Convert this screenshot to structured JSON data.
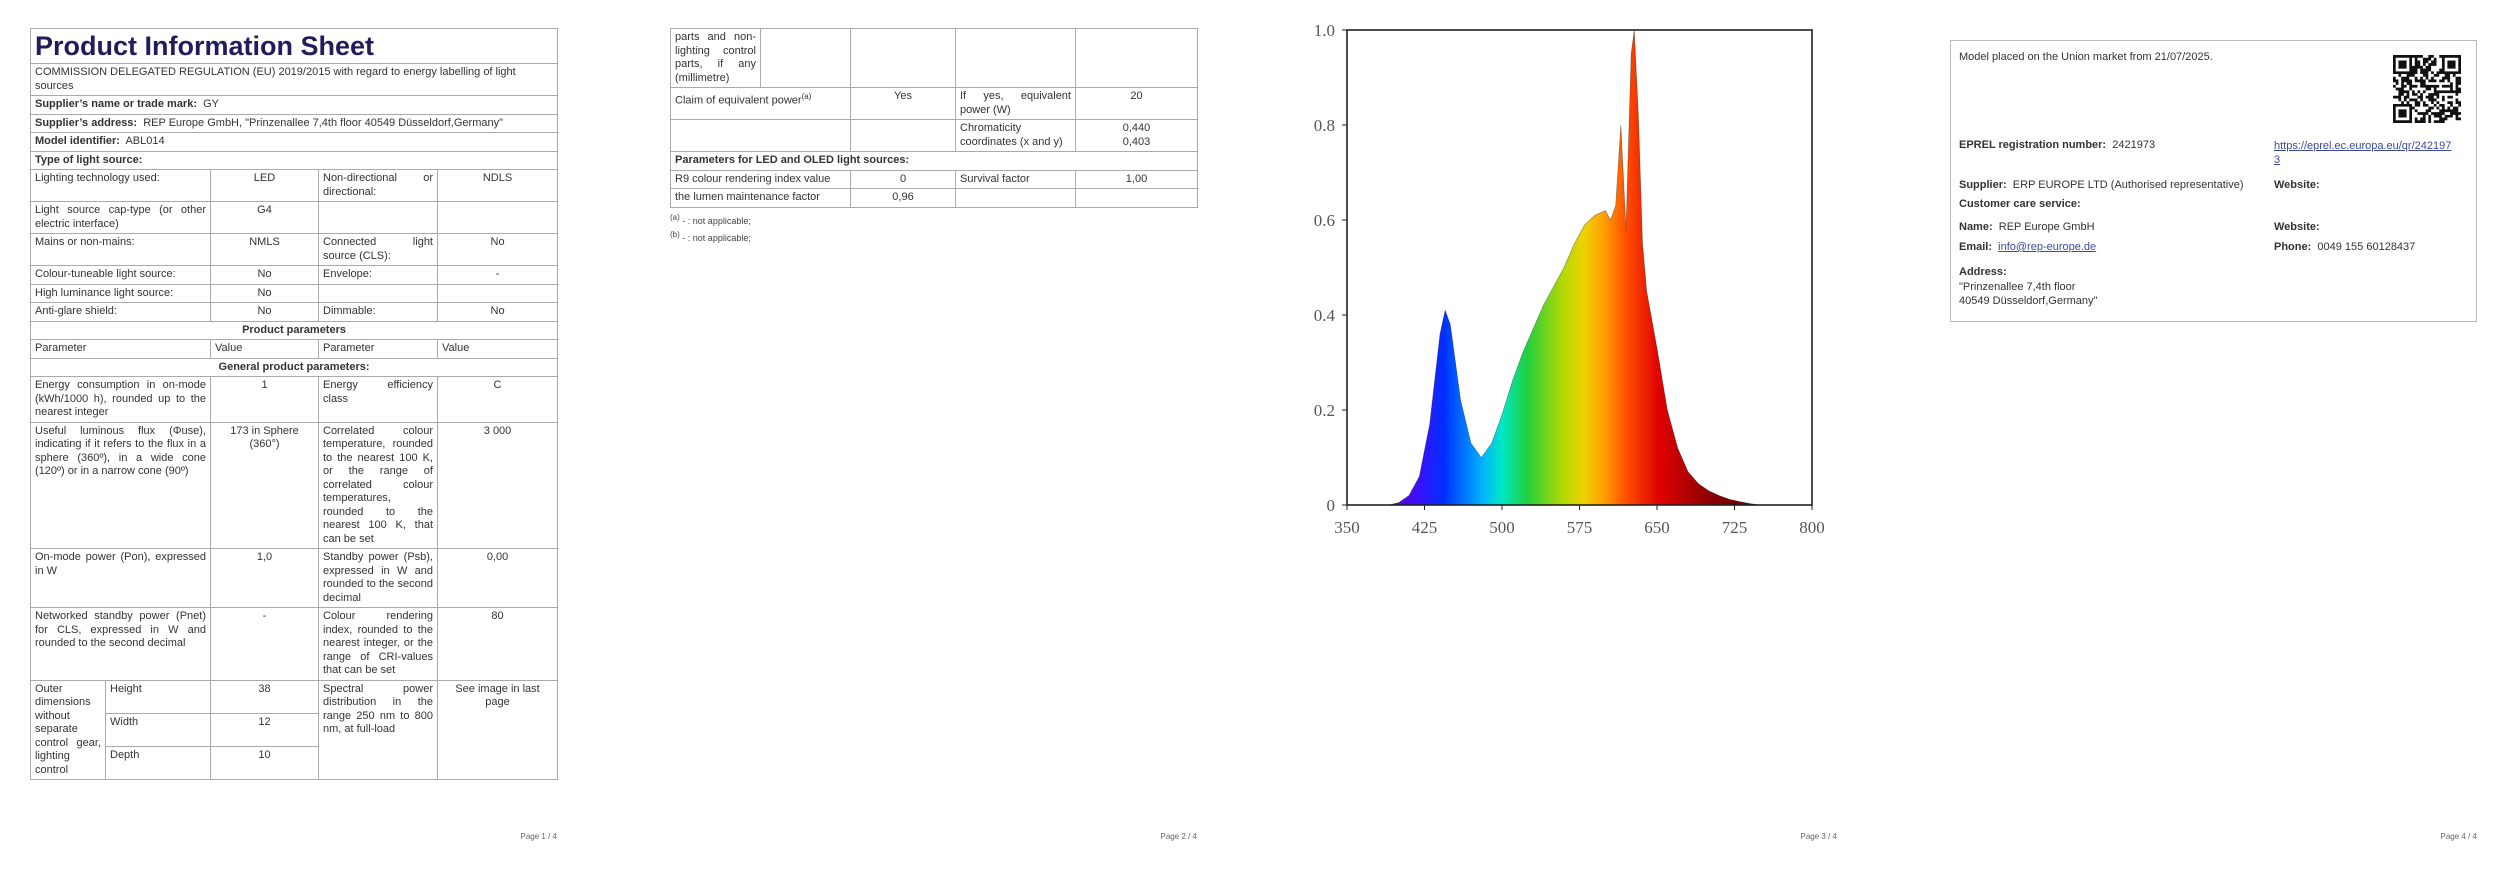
{
  "page1": {
    "title": "Product Information Sheet",
    "regulation": "COMMISSION DELEGATED REGULATION (EU) 2019/2015 with regard to energy labelling of light sources",
    "supplier_name": {
      "label": "Supplier’s name or trade mark:",
      "value": "GY"
    },
    "supplier_address": {
      "label": "Supplier’s address:",
      "value": "REP Europe GmbH, \"Prinzenallee 7,4th floor 40549 Düsseldorf,Germany\""
    },
    "model_identifier": {
      "label": "Model identifier:",
      "value": "ABL014"
    },
    "type_heading": "Type of light source:",
    "type_rows": [
      [
        "Lighting technology used:",
        "LED",
        "Non-directional or directional:",
        "NDLS"
      ],
      [
        "Light source cap-type (or other electric interface)",
        "G4"
      ],
      [
        "Mains or non-mains:",
        "NMLS",
        "Connected light source (CLS):",
        "No"
      ],
      [
        "Colour-tuneable light source:",
        "No",
        "Envelope:",
        "-"
      ],
      [
        "High luminance light source:",
        "No"
      ],
      [
        "Anti-glare shield:",
        "No",
        "Dimmable:",
        "No"
      ]
    ],
    "product_parameters": "Product parameters",
    "columns": [
      "Parameter",
      "Value",
      "Parameter",
      "Value"
    ],
    "general_heading": "General product parameters:",
    "param_rows": [
      [
        "Energy consumption in on-mode (kWh/1000 h), rounded up to the nearest integer",
        "1",
        "Energy efficiency class",
        "C"
      ],
      [
        "Useful luminous flux (Φuse), indicating if it refers to the flux in a sphere (360º), in a wide cone (120º) or in a narrow cone (90º)",
        "173 in Sphere (360°)",
        "Correlated colour temperature, rounded to the nearest 100 K, or the range of correlated colour temperatures, rounded to the nearest 100 K, that can be set",
        "3 000"
      ],
      [
        "On-mode power (Pon), expressed in W",
        "1,0",
        "Standby power (Psb), expressed in W and rounded to the second decimal",
        "0,00"
      ],
      [
        "Networked standby power (Pnet) for CLS, expressed in W and rounded to the second decimal",
        "-",
        "Colour rendering index, rounded to the nearest integer, or the range of CRI-values that can be set",
        "80"
      ]
    ],
    "dimensions": {
      "label": "Outer dimensions without separate control gear, lighting control",
      "rows": [
        [
          "Height",
          "38"
        ],
        [
          "Width",
          "12"
        ],
        [
          "Depth",
          "10"
        ]
      ],
      "param": "Spectral power distribution in the range 250 nm to 800 nm, at full-load",
      "value": "See image in last page"
    },
    "footer": "Page 1 / 4"
  },
  "page2": {
    "continuation": "parts and non-lighting control parts, if any (millimetre)",
    "claim": {
      "label": "Claim of equivalent power",
      "note": "(a)",
      "value": "Yes",
      "param": "If yes, equivalent power (W)",
      "param_value": "20"
    },
    "chromaticity": {
      "label": "Chromaticity coordinates (x and y)",
      "values": [
        "0,440",
        "0,403"
      ]
    },
    "led_heading": "Parameters for LED and OLED light sources:",
    "led_rows": [
      [
        "R9 colour rendering index value",
        "0",
        "Survival factor",
        "1,00"
      ],
      [
        "the lumen maintenance factor",
        "0,96"
      ]
    ],
    "footnotes": [
      {
        "mark": "(a)",
        "text": "- : not applicable;"
      },
      {
        "mark": "(b)",
        "text": "- : not applicable;"
      }
    ],
    "footer": "Page 2 / 4"
  },
  "chart_data": {
    "type": "area",
    "x": [
      350,
      360,
      370,
      380,
      390,
      400,
      410,
      420,
      430,
      440,
      445,
      450,
      455,
      460,
      470,
      480,
      490,
      500,
      510,
      520,
      530,
      540,
      550,
      560,
      570,
      580,
      590,
      600,
      605,
      610,
      615,
      620,
      625,
      628,
      632,
      636,
      640,
      650,
      660,
      670,
      680,
      690,
      700,
      710,
      720,
      730,
      740,
      750
    ],
    "values": [
      0,
      0,
      0,
      0,
      0,
      0.005,
      0.02,
      0.06,
      0.17,
      0.36,
      0.41,
      0.38,
      0.3,
      0.22,
      0.13,
      0.1,
      0.13,
      0.19,
      0.26,
      0.32,
      0.37,
      0.42,
      0.46,
      0.5,
      0.55,
      0.59,
      0.61,
      0.62,
      0.6,
      0.63,
      0.8,
      0.58,
      0.95,
      1.0,
      0.82,
      0.55,
      0.45,
      0.33,
      0.2,
      0.12,
      0.07,
      0.045,
      0.03,
      0.02,
      0.012,
      0.007,
      0.003,
      0
    ],
    "xlim": [
      350,
      800
    ],
    "ylim": [
      0,
      1
    ],
    "xticks": [
      350,
      425,
      500,
      575,
      650,
      725,
      800
    ],
    "yticks": [
      0,
      0.2,
      0.4,
      0.6,
      0.8,
      {
        "value": 1,
        "label": "1.0"
      }
    ]
  },
  "page3": {
    "footer": "Page 3 / 4"
  },
  "page4": {
    "market_text": "Model placed on the Union market from 21/07/2025.",
    "eprel": {
      "label": "EPREL registration number:",
      "value": "2421973",
      "link": "https://eprel.ec.europa.eu/qr/2421973"
    },
    "supplier": {
      "label": "Supplier:",
      "value": "ERP EUROPE LTD (Authorised representative)"
    },
    "website_1": "Website:",
    "customer_care": "Customer care service:",
    "name": {
      "label": "Name:",
      "value": "REP Europe GmbH"
    },
    "website_2": "Website:",
    "email": {
      "label": "Email:",
      "value": "info@rep-europe.de"
    },
    "phone": {
      "label": "Phone:",
      "value": "0049 155 60128437"
    },
    "address": {
      "label": "Address:",
      "lines": [
        "\"Prinzenallee 7,4th floor",
        "40549 Düsseldorf,Germany\""
      ]
    },
    "footer": "Page 4 / 4"
  }
}
